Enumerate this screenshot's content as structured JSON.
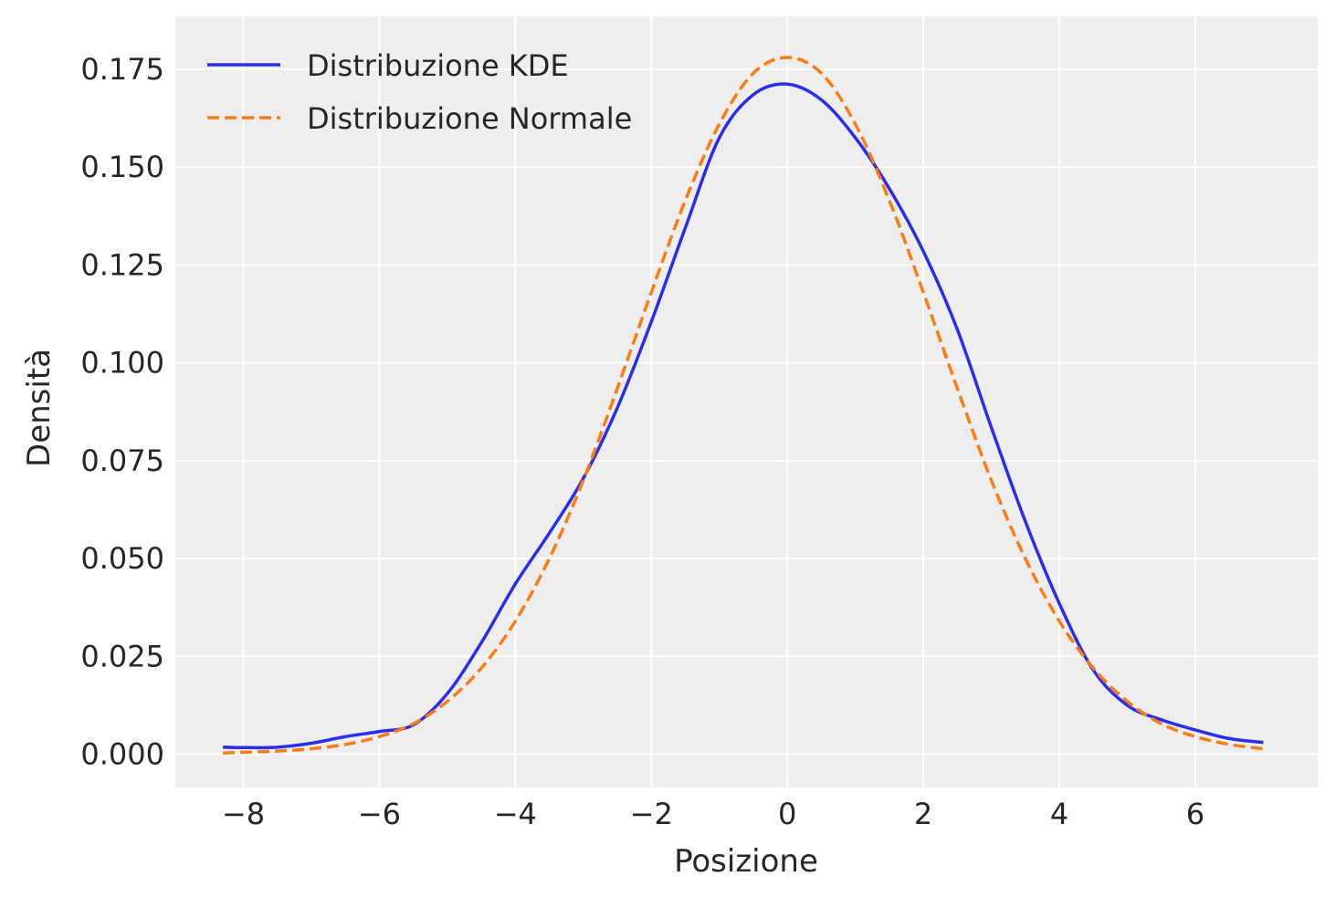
{
  "chart_data": {
    "type": "line",
    "title": "",
    "xlabel": "Posizione",
    "ylabel": "Densità",
    "xlim": [
      -9.0,
      7.8
    ],
    "ylim": [
      -0.0085,
      0.1885
    ],
    "x_ticks": [
      -8,
      -6,
      -4,
      -2,
      0,
      2,
      4,
      6
    ],
    "x_tick_labels": [
      "−8",
      "−6",
      "−4",
      "−2",
      "0",
      "2",
      "4",
      "6"
    ],
    "y_ticks": [
      0.0,
      0.025,
      0.05,
      0.075,
      0.1,
      0.125,
      0.15,
      0.175
    ],
    "y_tick_labels": [
      "0.000",
      "0.025",
      "0.050",
      "0.075",
      "0.100",
      "0.125",
      "0.150",
      "0.175"
    ],
    "grid": true,
    "legend_position": "top-left",
    "background_color": "#eeeeee",
    "series": [
      {
        "name": "Distribuzione KDE",
        "color": "#2a2eec",
        "style": "solid",
        "x": [
          -8.3,
          -8.0,
          -7.5,
          -7.0,
          -6.5,
          -6.0,
          -5.5,
          -5.0,
          -4.5,
          -4.0,
          -3.5,
          -3.0,
          -2.5,
          -2.0,
          -1.5,
          -1.0,
          -0.5,
          0.0,
          0.5,
          1.0,
          1.5,
          2.0,
          2.5,
          3.0,
          3.5,
          4.0,
          4.5,
          5.0,
          5.5,
          6.0,
          6.5,
          7.0
        ],
        "y": [
          0.0018,
          0.0017,
          0.0018,
          0.0028,
          0.0045,
          0.0058,
          0.0075,
          0.0155,
          0.0285,
          0.0435,
          0.0565,
          0.0705,
          0.0885,
          0.1105,
          0.1345,
          0.1575,
          0.1685,
          0.1712,
          0.1672,
          0.1575,
          0.1445,
          0.1285,
          0.1085,
          0.0835,
          0.0595,
          0.0385,
          0.0215,
          0.0125,
          0.0088,
          0.0062,
          0.004,
          0.003
        ]
      },
      {
        "name": "Distribuzione Normale",
        "color": "#fa7c17",
        "style": "dashed",
        "x": [
          -8.3,
          -8.0,
          -7.5,
          -7.0,
          -6.5,
          -6.0,
          -5.5,
          -5.0,
          -4.5,
          -4.0,
          -3.5,
          -3.0,
          -2.5,
          -2.0,
          -1.5,
          -1.0,
          -0.5,
          0.0,
          0.5,
          1.0,
          1.5,
          2.0,
          2.5,
          3.0,
          3.5,
          4.0,
          4.5,
          5.0,
          5.5,
          6.0,
          6.5,
          7.0
        ],
        "y": [
          0.0003,
          0.0005,
          0.0008,
          0.0014,
          0.0025,
          0.0045,
          0.0078,
          0.0135,
          0.022,
          0.034,
          0.05,
          0.07,
          0.0935,
          0.118,
          0.1415,
          0.161,
          0.174,
          0.178,
          0.174,
          0.161,
          0.1415,
          0.118,
          0.0935,
          0.07,
          0.05,
          0.034,
          0.022,
          0.0135,
          0.0078,
          0.0045,
          0.0025,
          0.0014
        ]
      }
    ]
  }
}
